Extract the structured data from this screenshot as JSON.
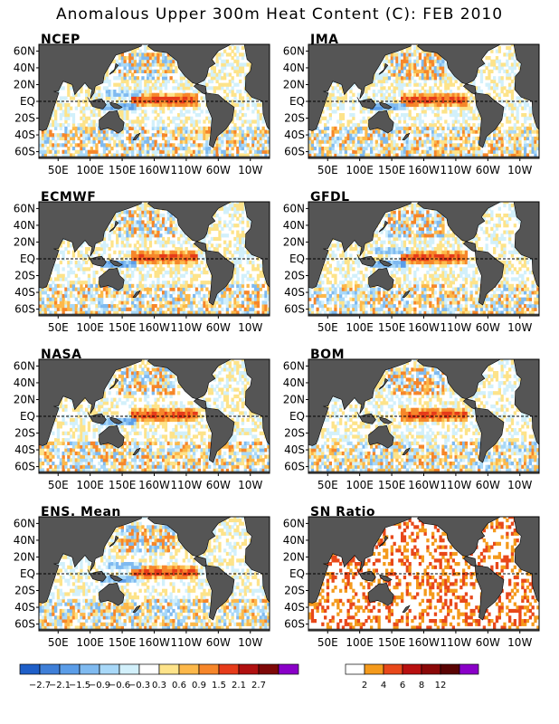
{
  "title": "Anomalous Upper 300m Heat Content (C): FEB 2010",
  "lat_ticks": [
    "60N",
    "40N",
    "20N",
    "EQ",
    "20S",
    "40S",
    "60S"
  ],
  "lon_ticks": [
    "50E",
    "100E",
    "150E",
    "160W",
    "110W",
    "60W",
    "10W"
  ],
  "colors": {
    "land": "#555555",
    "neg": [
      "#1f5fc8",
      "#3f7fd8",
      "#5b9de8",
      "#7fbaf0",
      "#a8d8f8",
      "#d2f0fb"
    ],
    "pos": [
      "#fde38a",
      "#fcb84a",
      "#f6862a",
      "#e63b1a",
      "#b01010",
      "#7e0808",
      "#8a00c8"
    ],
    "sn": [
      "#ffffff",
      "#f49a1c",
      "#e8481a",
      "#b81010",
      "#8a0808",
      "#5a0404",
      "#8a00c8"
    ]
  },
  "chart_data": [
    {
      "type": "heatmap",
      "panel": "NCEP",
      "title": "NCEP"
    },
    {
      "type": "heatmap",
      "panel": "JMA",
      "title": "JMA"
    },
    {
      "type": "heatmap",
      "panel": "ECMWF",
      "title": "ECMWF"
    },
    {
      "type": "heatmap",
      "panel": "GFDL",
      "title": "GFDL"
    },
    {
      "type": "heatmap",
      "panel": "NASA",
      "title": "NASA"
    },
    {
      "type": "heatmap",
      "panel": "BOM",
      "title": "BOM"
    },
    {
      "type": "heatmap",
      "panel": "ENS",
      "title": "ENS. Mean"
    },
    {
      "type": "heatmap",
      "panel": "SN",
      "title": "SN Ratio"
    }
  ],
  "colorbar_anomaly": {
    "labels": [
      "−2.7",
      "−2.1",
      "−1.5",
      "−0.9",
      "−0.6",
      "−0.3",
      "0.3",
      "0.6",
      "0.9",
      "1.5",
      "2.1",
      "2.7"
    ]
  },
  "colorbar_sn": {
    "labels": [
      "2",
      "4",
      "6",
      "8",
      "12"
    ]
  }
}
